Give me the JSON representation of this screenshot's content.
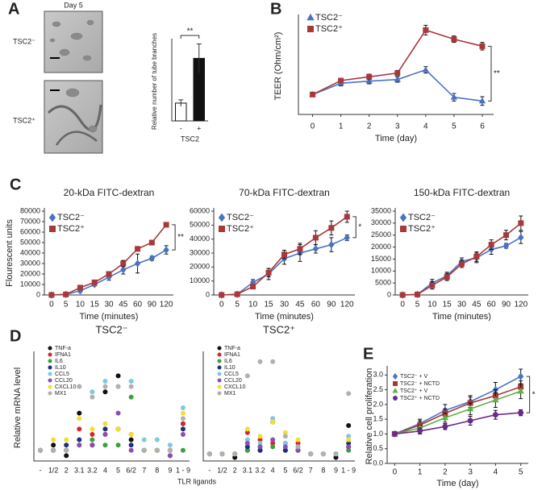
{
  "chart_data": [
    {
      "type": "bar",
      "panel": "A",
      "image_title": "Day 5",
      "image_labels": [
        "TSC2⁻",
        "TSC2⁺"
      ],
      "categories": [
        "-",
        "+"
      ],
      "values": [
        2.7,
        9.5
      ],
      "errors": [
        0.5,
        2.2
      ],
      "colors": [
        "#ffffff",
        "#111111"
      ],
      "ylabel": "Relative number of tube branches",
      "xlabel": "TSC2",
      "ylim": [
        0,
        12
      ],
      "annotation": "**"
    },
    {
      "type": "line",
      "panel": "B",
      "x": [
        0,
        1,
        2,
        3,
        4,
        5,
        6
      ],
      "xlim": [
        -0.5,
        6.4
      ],
      "xticks": [
        0,
        1,
        2,
        3,
        4,
        5,
        6
      ],
      "ylim": [
        80,
        260
      ],
      "xlabel": "Time (day)",
      "ylabel": "TEER (Ohm/cm²)",
      "annotation": "**",
      "legend": "upper left",
      "series": [
        {
          "name": "TSC2⁻",
          "color": "#4a72c4",
          "marker": "triangle",
          "values": [
            117,
            138,
            142,
            145,
            163,
            112,
            105
          ],
          "errors": [
            4,
            5,
            5,
            5,
            6,
            7,
            8
          ]
        },
        {
          "name": "TSC2⁺",
          "color": "#a8383a",
          "marker": "square",
          "values": [
            117,
            143,
            150,
            157,
            237,
            220,
            207
          ],
          "errors": [
            4,
            4,
            5,
            5,
            9,
            6,
            7
          ]
        }
      ]
    },
    {
      "type": "line",
      "panel": "C",
      "title": "20-kDa FITC-dextran",
      "categories": [
        "0",
        "5",
        "10",
        "15",
        "30",
        "45",
        "60",
        "90",
        "120"
      ],
      "ylim": [
        0,
        80000
      ],
      "yticks": [
        0,
        10000,
        20000,
        30000,
        40000,
        50000,
        60000,
        70000,
        80000
      ],
      "xlabel": "Time (minutes)",
      "ylabel": "Flourescent units",
      "annotation": "**",
      "legend": "upper left",
      "series": [
        {
          "name": "TSC2⁻",
          "color": "#4a72c4",
          "marker": "diamond",
          "values": [
            0,
            500,
            4000,
            10000,
            17000,
            24000,
            30000,
            35000,
            43000
          ],
          "errors": [
            0,
            300,
            1500,
            1500,
            3000,
            4000,
            9000,
            2000,
            4000
          ]
        },
        {
          "name": "TSC2⁺",
          "color": "#a8383a",
          "marker": "square",
          "values": [
            0,
            500,
            7000,
            12000,
            20000,
            30000,
            44000,
            50000,
            67000
          ],
          "errors": [
            0,
            300,
            1000,
            1500,
            2000,
            3000,
            2000,
            2000,
            1000
          ]
        }
      ]
    },
    {
      "type": "line",
      "title": "70-kDa FITC-dextran",
      "categories": [
        "0",
        "5",
        "10",
        "15",
        "30",
        "45",
        "60",
        "90",
        "120"
      ],
      "ylim": [
        0,
        60000
      ],
      "yticks": [
        0,
        10000,
        20000,
        30000,
        40000,
        50000,
        60000
      ],
      "xlabel": "Time (minutes)",
      "annotation": "*",
      "legend": "upper left",
      "series": [
        {
          "name": "TSC2⁻",
          "color": "#4a72c4",
          "marker": "diamond",
          "values": [
            0,
            500,
            9000,
            15000,
            26000,
            30000,
            33000,
            36000,
            41000
          ],
          "errors": [
            0,
            300,
            2000,
            4000,
            4000,
            6000,
            3000,
            5000,
            2000
          ]
        },
        {
          "name": "TSC2⁺",
          "color": "#a8383a",
          "marker": "square",
          "values": [
            0,
            500,
            6000,
            16000,
            29000,
            33000,
            41000,
            48000,
            56000
          ],
          "errors": [
            0,
            300,
            1500,
            3000,
            3000,
            4000,
            5000,
            5000,
            4000
          ]
        }
      ]
    },
    {
      "type": "line",
      "title": "150-kDa FITC-dextran",
      "categories": [
        "0",
        "5",
        "10",
        "15",
        "30",
        "45",
        "60",
        "90",
        "120"
      ],
      "ylim": [
        0,
        35000
      ],
      "yticks": [
        0,
        5000,
        10000,
        15000,
        20000,
        25000,
        30000,
        35000
      ],
      "xlabel": "Time (minutes)",
      "legend": "upper left",
      "series": [
        {
          "name": "TSC2⁻",
          "color": "#4a72c4",
          "marker": "diamond",
          "values": [
            0,
            200,
            5000,
            8000,
            14000,
            15500,
            19000,
            20500,
            24000
          ],
          "errors": [
            0,
            200,
            1500,
            1500,
            1500,
            2000,
            2000,
            1000,
            2500
          ]
        },
        {
          "name": "TSC2⁺",
          "color": "#a8383a",
          "marker": "square",
          "values": [
            0,
            200,
            4000,
            7500,
            13000,
            16000,
            21000,
            25000,
            30000
          ],
          "errors": [
            0,
            200,
            1500,
            1500,
            1500,
            2000,
            2000,
            2000,
            3000
          ]
        }
      ]
    },
    {
      "type": "dot",
      "panel": "D",
      "title": "TSC2⁻",
      "ylabel": "Relative mRNA level",
      "ylim": [
        0,
        20
      ],
      "legend": "upper left",
      "categories": [
        "-",
        "1/2",
        "2",
        "3.1",
        "3.2",
        "4",
        "5",
        "6/2",
        "7",
        "8",
        "9",
        "1 - 9"
      ],
      "series": [
        {
          "name": "TNF-a",
          "color": "#111111",
          "values": [
            2,
            3,
            1,
            9,
            3,
            13,
            16,
            4,
            2,
            2,
            1,
            7
          ]
        },
        {
          "name": "IFNA1",
          "color": "#d62728",
          "values": [
            2,
            2,
            2,
            6,
            5,
            5,
            6,
            5,
            2,
            2,
            2,
            7
          ]
        },
        {
          "name": "IL6",
          "color": "#3aa040",
          "values": [
            2,
            2,
            2,
            3,
            4,
            3,
            3,
            12,
            2,
            2,
            2,
            2
          ]
        },
        {
          "name": "IL10",
          "color": "#1f2f7a",
          "values": [
            2,
            2,
            3,
            4,
            3,
            6,
            6,
            3,
            2,
            2,
            2,
            6
          ]
        },
        {
          "name": "CCL5",
          "color": "#7fc8e0",
          "values": [
            2,
            2,
            2,
            14,
            13,
            15,
            14,
            15,
            4,
            4,
            3,
            10
          ]
        },
        {
          "name": "CCL20",
          "color": "#8a4fb0",
          "values": [
            2,
            2,
            2,
            3,
            3,
            5,
            9,
            2,
            2,
            2,
            1,
            5
          ]
        },
        {
          "name": "CXCL10",
          "color": "#f2e030",
          "values": [
            2,
            4,
            4,
            8,
            6,
            7,
            6,
            5,
            2,
            2,
            2,
            9
          ]
        },
        {
          "name": "MX1",
          "color": "#b0b0b0",
          "values": [
            2,
            2,
            2,
            14,
            12,
            14,
            14,
            14,
            2,
            2,
            2,
            8
          ]
        }
      ]
    },
    {
      "type": "dot",
      "title": "TSC2⁺",
      "xlabel": "TLR ligands",
      "ylim": [
        0,
        30
      ],
      "legend": "upper left",
      "categories": [
        "-",
        "1/2",
        "2",
        "3.1",
        "3.2",
        "4",
        "5",
        "6/2",
        "7",
        "8",
        "9",
        "1 - 9"
      ],
      "series": [
        {
          "name": "TNF-a",
          "color": "#111111",
          "values": [
            2,
            2,
            1,
            3,
            3,
            11,
            3,
            3,
            2,
            2,
            1,
            10
          ]
        },
        {
          "name": "IFNA1",
          "color": "#d62728",
          "values": [
            2,
            2,
            2,
            8,
            6,
            5,
            5,
            5,
            2,
            2,
            2,
            4
          ]
        },
        {
          "name": "IL6",
          "color": "#3aa040",
          "values": [
            2,
            2,
            2,
            3,
            4,
            4,
            3,
            3,
            2,
            2,
            2,
            3
          ]
        },
        {
          "name": "IL10",
          "color": "#1f2f7a",
          "values": [
            2,
            2,
            2,
            4,
            3,
            11,
            3,
            3,
            2,
            2,
            2,
            5
          ]
        },
        {
          "name": "CCL5",
          "color": "#7fc8e0",
          "values": [
            2,
            2,
            2,
            6,
            5,
            12,
            5,
            4,
            2,
            2,
            2,
            7
          ]
        },
        {
          "name": "CCL20",
          "color": "#8a4fb0",
          "values": [
            2,
            2,
            2,
            5,
            4,
            6,
            4,
            3,
            2,
            2,
            2,
            4
          ]
        },
        {
          "name": "CXCL10",
          "color": "#f2e030",
          "values": [
            2,
            2,
            2,
            9,
            7,
            11,
            8,
            6,
            2,
            2,
            2,
            6
          ]
        },
        {
          "name": "MX1",
          "color": "#b0b0b0",
          "values": [
            2,
            2,
            2,
            24,
            28,
            28,
            7,
            4,
            2,
            2,
            2,
            19
          ]
        }
      ]
    },
    {
      "type": "line",
      "panel": "E",
      "x": [
        0,
        1,
        2,
        3,
        4,
        5
      ],
      "xlim": [
        -0.3,
        5.3
      ],
      "xticks": [
        0,
        1,
        2,
        3,
        4,
        5
      ],
      "ylim": [
        0,
        3.2
      ],
      "yticks": [
        {
          "value": 0,
          "label": "0.0"
        },
        0.5,
        {
          "value": 1,
          "label": "1.0"
        },
        1.5,
        {
          "value": 2,
          "label": "2.0"
        },
        2.5,
        {
          "value": 3,
          "label": "3.0"
        }
      ],
      "xlabel": "Time (day)",
      "ylabel": "Relative cell proliferation",
      "annotation": "*",
      "legend": "upper left",
      "series": [
        {
          "name": "TSC2⁻ + V",
          "color": "#4a72c4",
          "marker": "diamond",
          "values": [
            1,
            1.35,
            1.8,
            2.1,
            2.5,
            2.95
          ],
          "errors": [
            0.05,
            0.15,
            0.2,
            0.2,
            0.25,
            0.25
          ]
        },
        {
          "name": "TSC2⁻ + NCTD",
          "color": "#a8383a",
          "marker": "square",
          "values": [
            1,
            1.3,
            1.7,
            2.05,
            2.3,
            2.6
          ],
          "errors": [
            0.05,
            0.15,
            0.15,
            0.2,
            0.2,
            0.2
          ]
        },
        {
          "name": "TSC2⁺ + V",
          "color": "#5fb043",
          "marker": "triangle",
          "values": [
            1,
            1.2,
            1.55,
            1.85,
            2.15,
            2.45
          ],
          "errors": [
            0.05,
            0.1,
            0.15,
            0.2,
            0.25,
            0.25
          ]
        },
        {
          "name": "TSC2⁺ + NCTD",
          "color": "#6a2a90",
          "marker": "circle",
          "values": [
            1,
            1.1,
            1.25,
            1.45,
            1.65,
            1.72
          ],
          "errors": [
            0.05,
            0.1,
            0.1,
            0.15,
            0.15,
            0.1
          ]
        }
      ]
    }
  ]
}
